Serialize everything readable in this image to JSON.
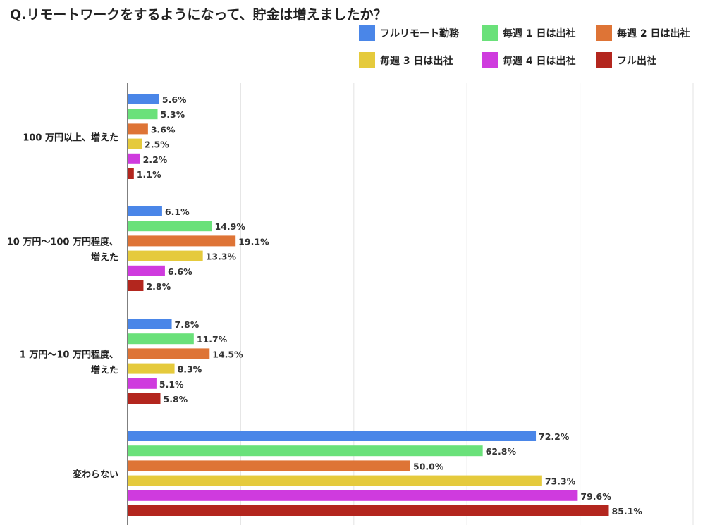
{
  "title": "Q.リモートワークをするようになって、貯金は増えましたか？",
  "chart_data": {
    "type": "bar",
    "orientation": "horizontal",
    "title": "Q.リモートワークをするようになって、貯金は増えましたか？",
    "categories": [
      [
        "100 万円以上、増えた"
      ],
      [
        "10 万円〜100 万円程度、",
        "増えた"
      ],
      [
        "1 万円〜10 万円程度、",
        "増えた"
      ],
      [
        "変わらない"
      ]
    ],
    "xlim": [
      0,
      100
    ],
    "grid": true,
    "legend_position": "top-right",
    "series": [
      {
        "name": "フルリモート勤務",
        "color": "#4A86E8",
        "values": [
          5.6,
          6.1,
          7.8,
          72.2
        ],
        "labels": [
          "5.6%",
          "6.1%",
          "7.8%",
          "72.2%"
        ]
      },
      {
        "name": "毎週 1 日は出社",
        "color": "#6AE17A",
        "values": [
          5.3,
          14.9,
          11.7,
          62.8
        ],
        "labels": [
          "5.3%",
          "14.9%",
          "11.7%",
          "62.8%"
        ]
      },
      {
        "name": "毎週 2 日は出社",
        "color": "#DE7436",
        "values": [
          3.6,
          19.1,
          14.5,
          50.0
        ],
        "labels": [
          "3.6%",
          "19.1%",
          "14.5%",
          "50.0%"
        ]
      },
      {
        "name": "毎週 3 日は出社",
        "color": "#E5CA3C",
        "values": [
          2.5,
          13.3,
          8.3,
          73.3
        ],
        "labels": [
          "2.5%",
          "13.3%",
          "8.3%",
          "73.3%"
        ]
      },
      {
        "name": "毎週 4 日は出社",
        "color": "#CF3BDE",
        "values": [
          2.2,
          6.6,
          5.1,
          79.6
        ],
        "labels": [
          "2.2%",
          "6.6%",
          "5.1%",
          "79.6%"
        ]
      },
      {
        "name": "フル出社",
        "color": "#B3261E",
        "values": [
          1.1,
          2.8,
          5.8,
          85.1
        ],
        "labels": [
          "1.1%",
          "2.8%",
          "5.8%",
          "85.1%"
        ]
      }
    ]
  }
}
